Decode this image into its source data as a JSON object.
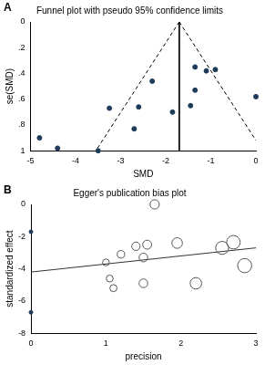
{
  "chart_data": [
    {
      "type": "scatter",
      "panel": "A",
      "title": "Funnel plot with pseudo 95% confidence limits",
      "x_label": "SMD",
      "y_label": "se(SMD)",
      "xlim": [
        -5,
        0
      ],
      "xticks": [
        -5,
        -4,
        -3,
        -2,
        -1,
        0
      ],
      "ylim": [
        1,
        0
      ],
      "yticks": [
        0,
        {
          "value": 0.2,
          "label": ".2"
        },
        {
          "value": 0.4,
          "label": ".4"
        },
        {
          "value": 0.6,
          "label": ".6"
        },
        {
          "value": 0.8,
          "label": ".8"
        },
        1
      ],
      "grid": false,
      "points": {
        "x": [
          -4.8,
          -4.4,
          -3.5,
          -3.25,
          -2.7,
          -2.6,
          -2.3,
          -1.85,
          -1.45,
          -1.35,
          -1.35,
          -1.1,
          -0.9,
          0.0
        ],
        "y": [
          0.9,
          0.98,
          1.0,
          0.67,
          0.83,
          0.66,
          0.46,
          0.7,
          0.65,
          0.53,
          0.35,
          0.38,
          0.37,
          0.58
        ],
        "color": "#1f3b5a",
        "marker": "circle"
      },
      "lines": [
        {
          "x": [
            -1.7,
            -3.55
          ],
          "y": [
            0,
            1
          ],
          "color": "#000000",
          "line_style": "dashed"
        },
        {
          "x": [
            -1.7,
            0.15
          ],
          "y": [
            0,
            1
          ],
          "color": "#000000",
          "line_style": "dashed"
        },
        {
          "x": [
            -1.7,
            -1.7
          ],
          "y": [
            0,
            1
          ],
          "color": "#000000",
          "line_style": "solid"
        }
      ]
    },
    {
      "type": "scatter",
      "panel": "B",
      "title": "Egger's publication bias plot",
      "x_label": "precision",
      "y_label": "standardized effect",
      "xlim": [
        0,
        3
      ],
      "xticks": [
        0,
        1,
        2,
        3
      ],
      "ylim": [
        -8,
        0
      ],
      "yticks": [
        -8,
        -6,
        -4,
        -2,
        0
      ],
      "grid": false,
      "points": {
        "x": [
          1.0,
          1.05,
          1.1,
          1.2,
          1.4,
          1.5,
          1.5,
          1.55,
          1.65,
          1.95,
          2.2,
          2.55,
          2.7,
          2.85
        ],
        "y": [
          -3.6,
          -4.6,
          -5.2,
          -3.1,
          -2.6,
          -3.3,
          -4.9,
          -2.5,
          0.0,
          -2.4,
          -4.9,
          -2.7,
          -2.35,
          -3.8
        ],
        "sizes": [
          1.0,
          1.1,
          1.2,
          1.4,
          2.0,
          2.2,
          2.2,
          2.4,
          2.7,
          3.8,
          4.8,
          6.5,
          7.3,
          8.1
        ],
        "color": "#555555",
        "marker": "hollow_circle"
      },
      "lines": [
        {
          "x": [
            0,
            3
          ],
          "y": [
            -4.2,
            -2.7
          ],
          "color": "#333333",
          "line_style": "solid"
        }
      ],
      "intercept_ci": {
        "x": [
          0,
          0
        ],
        "y": [
          -1.7,
          -6.7
        ],
        "color": "#1f3b5a",
        "marker": "circle"
      }
    }
  ]
}
